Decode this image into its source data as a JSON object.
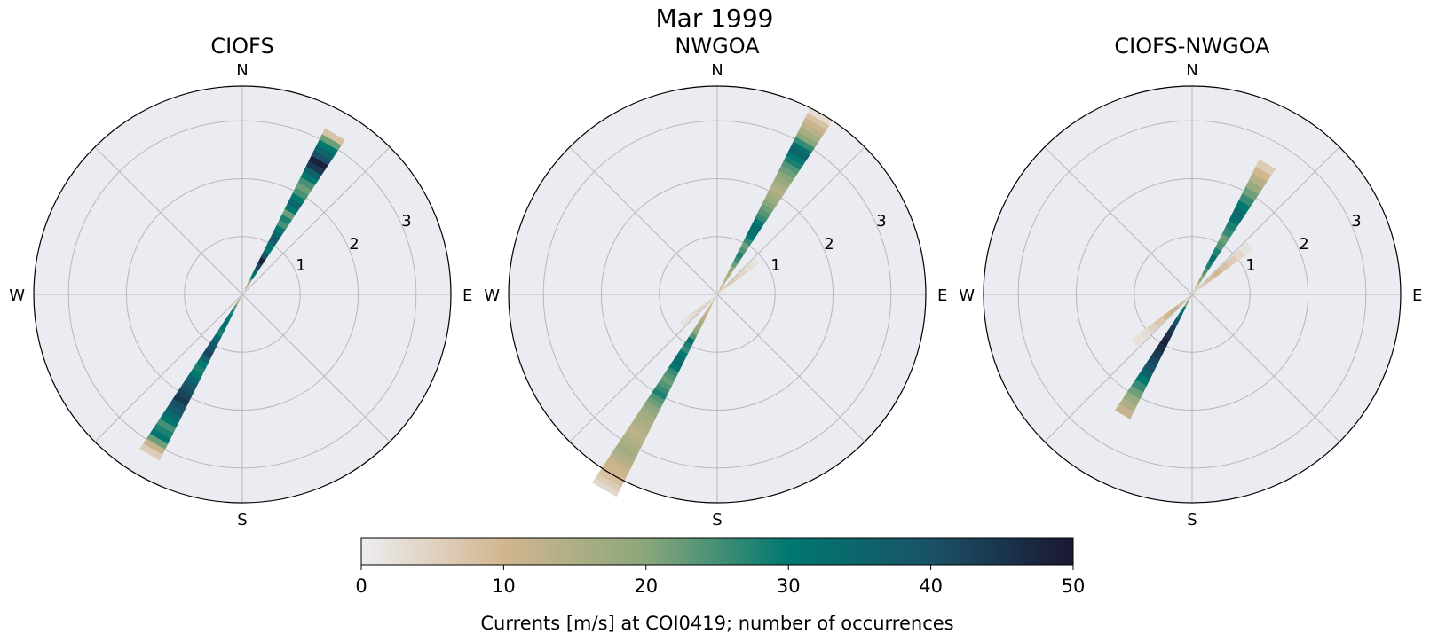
{
  "figure": {
    "title": "Mar 1999"
  },
  "panels": [
    {
      "title": "CIOFS"
    },
    {
      "title": "NWGOA"
    },
    {
      "title": "CIOFS-NWGOA"
    }
  ],
  "compass": {
    "n": "N",
    "e": "E",
    "s": "S",
    "w": "W"
  },
  "radial_ticks": [
    "1",
    "2",
    "3"
  ],
  "colorbar": {
    "label": "Currents [m/s] at COI0419; number of occurrences",
    "ticks": [
      "0",
      "10",
      "20",
      "30",
      "40",
      "50"
    ],
    "range": [
      0,
      50
    ],
    "colors": [
      "#ededf0",
      "#d2b690",
      "#8aa77b",
      "#007870",
      "#195266",
      "#1b1732"
    ]
  },
  "chart_data": [
    {
      "type": "polar-histogram",
      "title": "CIOFS",
      "rmax": 3.6,
      "rticks": [
        1,
        2,
        3
      ],
      "bins": [
        {
          "direction": 30,
          "r_max": 3.2,
          "counts": [
            3,
            12,
            20,
            30,
            35,
            42,
            48,
            40,
            30,
            32,
            38,
            35,
            30,
            25,
            28,
            22,
            30,
            35,
            30,
            25,
            22,
            25,
            30,
            36,
            44,
            48,
            40,
            35,
            30,
            22,
            8
          ]
        },
        {
          "direction": 210,
          "r_max": 3.2,
          "counts": [
            8,
            15,
            22,
            28,
            30,
            33,
            30,
            28,
            34,
            38,
            40,
            42,
            36,
            30,
            28,
            30,
            35,
            38,
            40,
            42,
            44,
            40,
            38,
            34,
            30,
            25,
            28,
            30,
            22,
            12,
            6
          ]
        }
      ]
    },
    {
      "type": "polar-histogram",
      "title": "NWGOA",
      "rmax": 3.6,
      "rticks": [
        1,
        2,
        3
      ],
      "bins": [
        {
          "direction": 30,
          "r_max": 3.6,
          "counts": [
            6,
            10,
            12,
            14,
            16,
            18,
            22,
            26,
            28,
            24,
            22,
            26,
            30,
            32,
            34,
            30,
            26,
            24,
            22,
            20,
            18,
            16,
            14,
            16,
            18,
            20,
            22,
            24,
            28,
            30,
            35,
            32,
            26,
            20,
            16,
            13,
            11,
            8,
            3
          ]
        },
        {
          "direction": 50,
          "r_max": 0.9,
          "counts": [
            3,
            5,
            6,
            5,
            4,
            3,
            2
          ]
        },
        {
          "direction": 210,
          "r_max": 3.9,
          "counts": [
            3,
            6,
            8,
            10,
            12,
            14,
            16,
            18,
            20,
            24,
            32,
            28,
            26,
            30,
            32,
            34,
            30,
            26,
            24,
            22,
            24,
            26,
            28,
            24,
            22,
            20,
            18,
            17,
            16,
            15,
            14,
            13,
            14,
            15,
            16,
            17,
            15,
            14,
            12,
            11,
            10,
            8,
            6,
            4
          ]
        },
        {
          "direction": 230,
          "r_max": 0.8,
          "counts": [
            2,
            3,
            4,
            3,
            2
          ]
        }
      ]
    },
    {
      "type": "polar-histogram",
      "title": "CIOFS-NWGOA",
      "rmax": 3.6,
      "rticks": [
        1,
        2,
        3
      ],
      "bins": [
        {
          "direction": 30,
          "r_max": 2.6,
          "counts": [
            6,
            12,
            18,
            24,
            28,
            32,
            28,
            24,
            22,
            26,
            28,
            32,
            34,
            30,
            26,
            22,
            18,
            14,
            10,
            6
          ]
        },
        {
          "direction": 50,
          "r_max": 1.3,
          "counts": [
            3,
            6,
            8,
            10,
            8,
            6,
            4,
            2
          ]
        },
        {
          "direction": 210,
          "r_max": 2.4,
          "counts": [
            10,
            20,
            30,
            36,
            40,
            44,
            46,
            48,
            46,
            44,
            42,
            40,
            36,
            30,
            26,
            22,
            18,
            15,
            12
          ]
        },
        {
          "direction": 230,
          "r_max": 1.3,
          "counts": [
            4,
            8,
            12,
            10,
            7,
            5,
            3,
            2
          ]
        }
      ]
    }
  ]
}
